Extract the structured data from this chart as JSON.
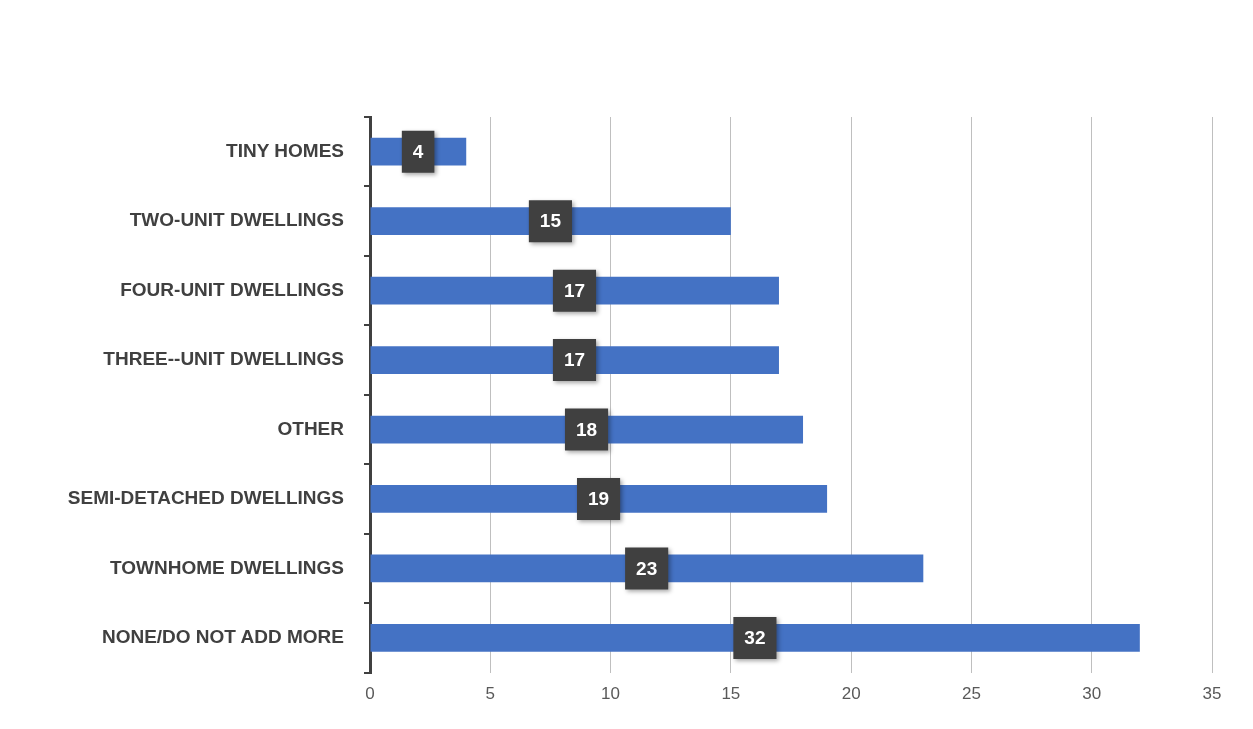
{
  "chart_data": {
    "type": "bar",
    "orientation": "horizontal",
    "categories": [
      "TINY HOMES",
      "TWO-UNIT DWELLINGS",
      "FOUR-UNIT DWELLINGS",
      "THREE--UNIT DWELLINGS",
      "OTHER",
      "SEMI-DETACHED DWELLINGS",
      "TOWNHOME DWELLINGS",
      "NONE/DO NOT ADD MORE"
    ],
    "values": [
      4,
      15,
      17,
      17,
      18,
      19,
      23,
      32
    ],
    "color": "#4472c4",
    "xlim": [
      0,
      35
    ],
    "xticks": [
      0,
      5,
      10,
      15,
      20,
      25,
      30,
      35
    ],
    "grid": "x",
    "legend": false,
    "data_labels": true
  }
}
